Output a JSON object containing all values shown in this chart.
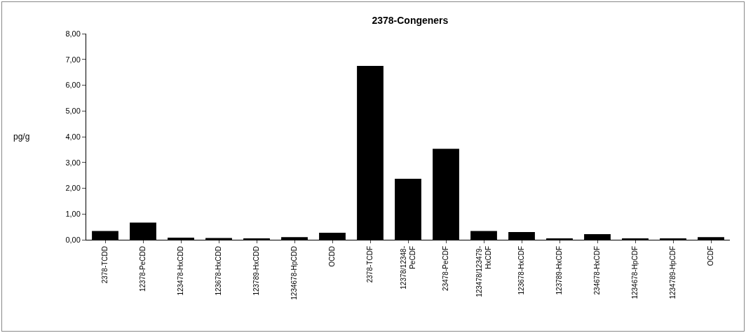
{
  "chart_data": {
    "type": "bar",
    "title": "2378-Congeners",
    "ylabel": "pg/g",
    "categories": [
      "2378-TCDD",
      "12378-PeCDD",
      "123478-HxCDD",
      "123678-HxCDD",
      "123789-HxCDD",
      "1234678-HpCDD",
      "OCDD",
      "2378-TCDF",
      "12378/12348-\nPeCDF",
      "23478-PeCDF",
      "123478/123479-\nHxCDF",
      "123678-HxCDF",
      "123789-HxCDF",
      "234678-HxCDF",
      "1234678-HpCDF",
      "1234789-HpCDF",
      "OCDF"
    ],
    "values": [
      0.34,
      0.67,
      0.08,
      0.07,
      0.05,
      0.1,
      0.27,
      6.75,
      2.37,
      3.53,
      0.34,
      0.3,
      0.04,
      0.22,
      0.03,
      0.03,
      0.1
    ],
    "color": "#000000",
    "ylim": [
      0,
      8
    ],
    "yticks": [
      {
        "value": 0,
        "label": "0,00"
      },
      {
        "value": 1,
        "label": "1,00"
      },
      {
        "value": 2,
        "label": "2,00"
      },
      {
        "value": 3,
        "label": "3,00"
      },
      {
        "value": 4,
        "label": "4,00"
      },
      {
        "value": 5,
        "label": "5,00"
      },
      {
        "value": 6,
        "label": "6,00"
      },
      {
        "value": 7,
        "label": "7,00"
      },
      {
        "value": 8,
        "label": "8,00"
      }
    ],
    "grid": false,
    "legend": false
  }
}
